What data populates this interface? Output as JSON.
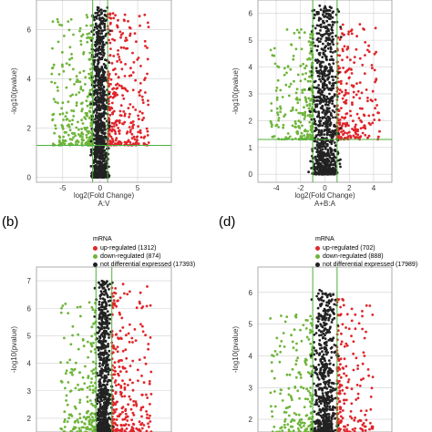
{
  "colors": {
    "up": "#e0252a",
    "down": "#6fb53a",
    "not": "#222222",
    "guide": "#4daf3c",
    "grid": "#d0d0d0"
  },
  "panel_labels": [
    "(b)",
    "(d)"
  ],
  "chart_data": [
    {
      "type": "scatter",
      "chart_id": "top-left",
      "xlabel": "log2(Fold Change)",
      "ylabel": "-log10(pvalue)",
      "subtitle": "A:V",
      "xlim": [
        -8.5,
        9.5
      ],
      "ylim": [
        -0.2,
        7.2
      ],
      "xticks": [
        -5,
        0,
        5
      ],
      "yticks": [
        0,
        2,
        4,
        6
      ],
      "grid": true,
      "guides": {
        "x": [
          -1,
          1
        ],
        "y": [
          1.3
        ]
      },
      "legend": null,
      "series": [
        {
          "name": "up-regulated",
          "color_key": "up",
          "x_range": [
            1.0,
            6.5
          ],
          "y_range": [
            1.3,
            6.7
          ],
          "n": 320,
          "seed": 11
        },
        {
          "name": "down-regulated",
          "color_key": "down",
          "x_range": [
            -6.5,
            -1.0
          ],
          "y_range": [
            1.3,
            6.6
          ],
          "n": 300,
          "seed": 12
        },
        {
          "name": "not differential expressed",
          "color_key": "not",
          "x_range": [
            -1.5,
            1.5
          ],
          "y_range": [
            0.0,
            6.9
          ],
          "n": 900,
          "seed": 13
        }
      ]
    },
    {
      "type": "scatter",
      "chart_id": "top-right",
      "xlabel": "log2(Fold Change)",
      "ylabel": "-log10(pvalue)",
      "subtitle": "A+B:A",
      "xlim": [
        -5.5,
        5.5
      ],
      "ylim": [
        -0.3,
        6.5
      ],
      "xticks": [
        -4,
        -2,
        0,
        2,
        4
      ],
      "yticks": [
        0,
        1,
        2,
        3,
        4,
        5,
        6
      ],
      "grid": true,
      "guides": {
        "x": [
          -1,
          1
        ],
        "y": [
          1.3
        ]
      },
      "legend": null,
      "series": [
        {
          "name": "up-regulated",
          "color_key": "up",
          "x_range": [
            1.0,
            4.5
          ],
          "y_range": [
            1.3,
            5.6
          ],
          "n": 260,
          "seed": 21
        },
        {
          "name": "down-regulated",
          "color_key": "down",
          "x_range": [
            -4.5,
            -1.0
          ],
          "y_range": [
            1.3,
            5.4
          ],
          "n": 260,
          "seed": 22
        },
        {
          "name": "not differential expressed",
          "color_key": "not",
          "x_range": [
            -1.5,
            1.5
          ],
          "y_range": [
            0.0,
            6.3
          ],
          "n": 900,
          "seed": 23
        }
      ]
    },
    {
      "type": "scatter",
      "chart_id": "panel-b",
      "xlabel": "",
      "ylabel": "-log10(pvalue)",
      "subtitle": "",
      "xlim": [
        -8.5,
        8.5
      ],
      "ylim": [
        1.5,
        7.5
      ],
      "xticks": [],
      "yticks": [
        2,
        3,
        4,
        5,
        6,
        7
      ],
      "grid": true,
      "guides": {
        "x": [
          -1,
          1
        ],
        "y": []
      },
      "legend": {
        "title": "mRNA",
        "entries": [
          {
            "label": "up-regulated (1312)",
            "color_key": "up"
          },
          {
            "label": "down-regulated (874)",
            "color_key": "down"
          },
          {
            "label": "not differential expressed (17393)",
            "color_key": "not"
          }
        ]
      },
      "series": [
        {
          "name": "up-regulated",
          "color_key": "up",
          "x_range": [
            1.0,
            6.0
          ],
          "y_range": [
            1.5,
            6.9
          ],
          "n": 280,
          "seed": 31
        },
        {
          "name": "down-regulated",
          "color_key": "down",
          "x_range": [
            -5.5,
            -1.0
          ],
          "y_range": [
            1.5,
            6.3
          ],
          "n": 200,
          "seed": 32
        },
        {
          "name": "not differential expressed",
          "color_key": "not",
          "x_range": [
            -1.3,
            1.3
          ],
          "y_range": [
            1.5,
            7.0
          ],
          "n": 650,
          "seed": 33
        }
      ]
    },
    {
      "type": "scatter",
      "chart_id": "panel-d",
      "xlabel": "",
      "ylabel": "-log10(pvalue)",
      "subtitle": "",
      "xlim": [
        -5.5,
        5.5
      ],
      "ylim": [
        1.6,
        6.8
      ],
      "xticks": [],
      "yticks": [
        2,
        3,
        4,
        5,
        6
      ],
      "grid": true,
      "guides": {
        "x": [
          -1,
          1
        ],
        "y": []
      },
      "legend": {
        "title": "mRNA",
        "entries": [
          {
            "label": "up-regulated (702)",
            "color_key": "up"
          },
          {
            "label": "down-regulated (888)",
            "color_key": "down"
          },
          {
            "label": "not differential expressed (17989)",
            "color_key": "not"
          }
        ]
      },
      "series": [
        {
          "name": "up-regulated",
          "color_key": "up",
          "x_range": [
            1.0,
            4.0
          ],
          "y_range": [
            1.6,
            5.8
          ],
          "n": 200,
          "seed": 41
        },
        {
          "name": "down-regulated",
          "color_key": "down",
          "x_range": [
            -4.5,
            -1.0
          ],
          "y_range": [
            1.6,
            5.3
          ],
          "n": 200,
          "seed": 42
        },
        {
          "name": "not differential expressed",
          "color_key": "not",
          "x_range": [
            -1.3,
            1.3
          ],
          "y_range": [
            1.6,
            6.1
          ],
          "n": 600,
          "seed": 43
        }
      ]
    }
  ]
}
